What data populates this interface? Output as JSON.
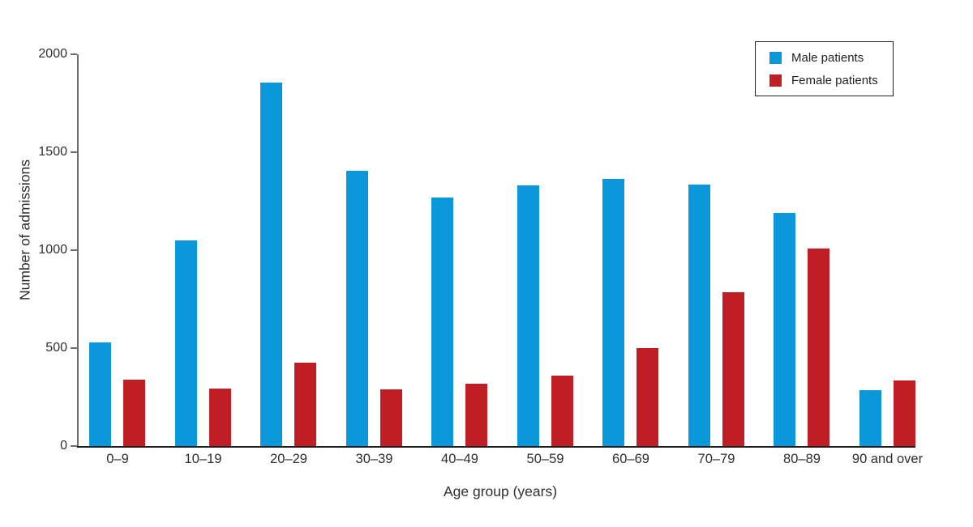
{
  "figure": {
    "background_color": "#ffffff"
  },
  "chart_data": {
    "type": "bar",
    "title": "",
    "xlabel": "Age group (years)",
    "ylabel": "Number of admissions",
    "ylim": [
      0,
      2000
    ],
    "yticks": [
      0,
      500,
      1000,
      1500,
      2000
    ],
    "grid": false,
    "legend_position": "top-right",
    "legend_border": true,
    "categories": [
      "0–9",
      "10–19",
      "20–29",
      "30–39",
      "40–49",
      "50–59",
      "60–69",
      "70–79",
      "80–89",
      "90 and over"
    ],
    "series": [
      {
        "name": "Male patients",
        "color": "#0a98da",
        "values": [
          530,
          1050,
          1855,
          1405,
          1270,
          1330,
          1365,
          1335,
          1190,
          285
        ]
      },
      {
        "name": "Female patients",
        "color": "#be1e24",
        "values": [
          340,
          295,
          425,
          290,
          320,
          360,
          500,
          785,
          1010,
          335
        ]
      }
    ]
  }
}
